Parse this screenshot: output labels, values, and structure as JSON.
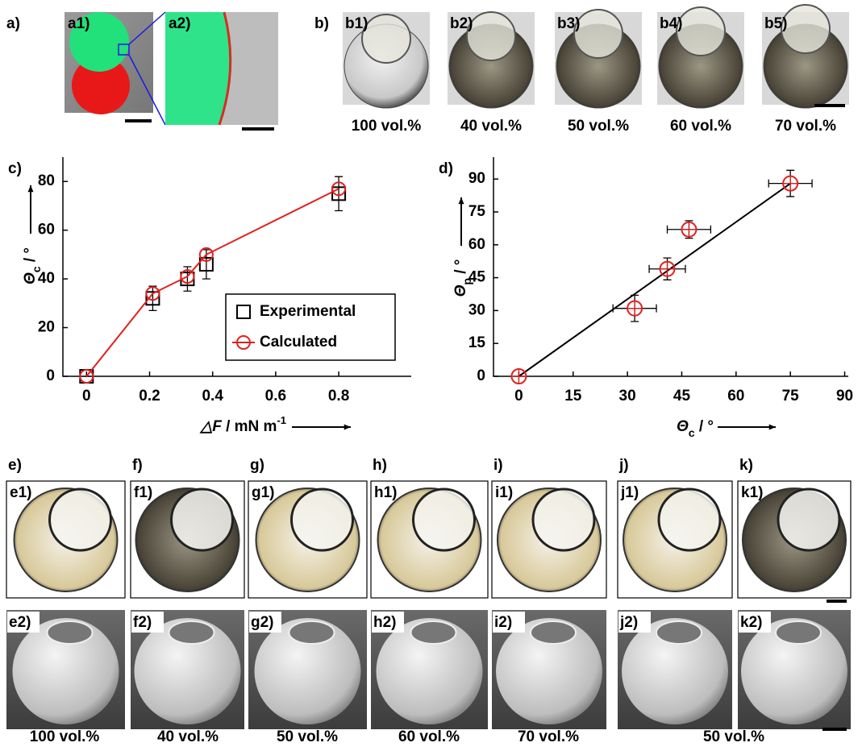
{
  "figure": {
    "a": {
      "label": "a)",
      "subpanels": [
        "a1)",
        "a2)"
      ]
    },
    "b": {
      "label": "b)",
      "subpanels": [
        "b1)",
        "b2)",
        "b3)",
        "b4)",
        "b5)"
      ],
      "captions": [
        "100 vol.%",
        "40 vol.%",
        "50 vol.%",
        "60 vol.%",
        "70 vol.%"
      ]
    },
    "e_k": {
      "labels": [
        "e)",
        "f)",
        "g)",
        "h)",
        "i)",
        "j)",
        "k)"
      ],
      "row1": [
        "e1)",
        "f1)",
        "g1)",
        "h1)",
        "i1)",
        "j1)",
        "k1)"
      ],
      "row2": [
        "e2)",
        "f2)",
        "g2)",
        "h2)",
        "i2)",
        "j2)",
        "k2)"
      ],
      "captions": [
        "100 vol.%",
        "40 vol.%",
        "50 vol.%",
        "60 vol.%",
        "70 vol.%",
        "50 vol.%"
      ]
    }
  },
  "chart_data": [
    {
      "type": "line",
      "label": "c)",
      "xlabel": [
        "△F",
        "  / mN m",
        "-1"
      ],
      "ylabel": [
        "Θ",
        "c",
        " / °"
      ],
      "x": [
        0,
        0.21,
        0.32,
        0.38,
        0.8
      ],
      "xlim": [
        -0.075,
        1.03
      ],
      "ylim": [
        0,
        90
      ],
      "xticks": [
        0,
        0.2,
        0.4,
        0.6,
        0.8
      ],
      "yticks": [
        0,
        20,
        40,
        60,
        80
      ],
      "series": [
        {
          "name": "Experimental",
          "color": "#000000",
          "marker": "square",
          "line": false,
          "values": [
            0,
            32,
            40,
            46,
            75
          ],
          "errors": [
            0,
            5,
            5,
            6,
            7
          ]
        },
        {
          "name": "Calculated",
          "color": "#e02020",
          "marker": "circle",
          "line": true,
          "values": [
            0,
            34,
            41,
            50,
            77
          ]
        }
      ]
    },
    {
      "type": "scatter",
      "label": "d)",
      "xlabel": [
        "Θ",
        "c",
        " / °"
      ],
      "ylabel": [
        "Θ",
        "p",
        " / °"
      ],
      "x": [
        0,
        32,
        41,
        47,
        75
      ],
      "values": [
        0,
        31,
        49,
        67,
        88
      ],
      "x_err": [
        0,
        6,
        5,
        6,
        6
      ],
      "y_err": [
        0,
        6,
        5,
        4,
        6
      ],
      "color": "#e02020",
      "trend_line": {
        "x": [
          0,
          75
        ],
        "values": [
          0,
          88
        ],
        "color": "#000000"
      },
      "xlim": [
        -7,
        91
      ],
      "ylim": [
        0,
        100
      ],
      "xticks": [
        0,
        15,
        30,
        45,
        60,
        75,
        90
      ],
      "yticks": [
        0,
        15,
        30,
        45,
        60,
        75,
        90
      ]
    }
  ]
}
